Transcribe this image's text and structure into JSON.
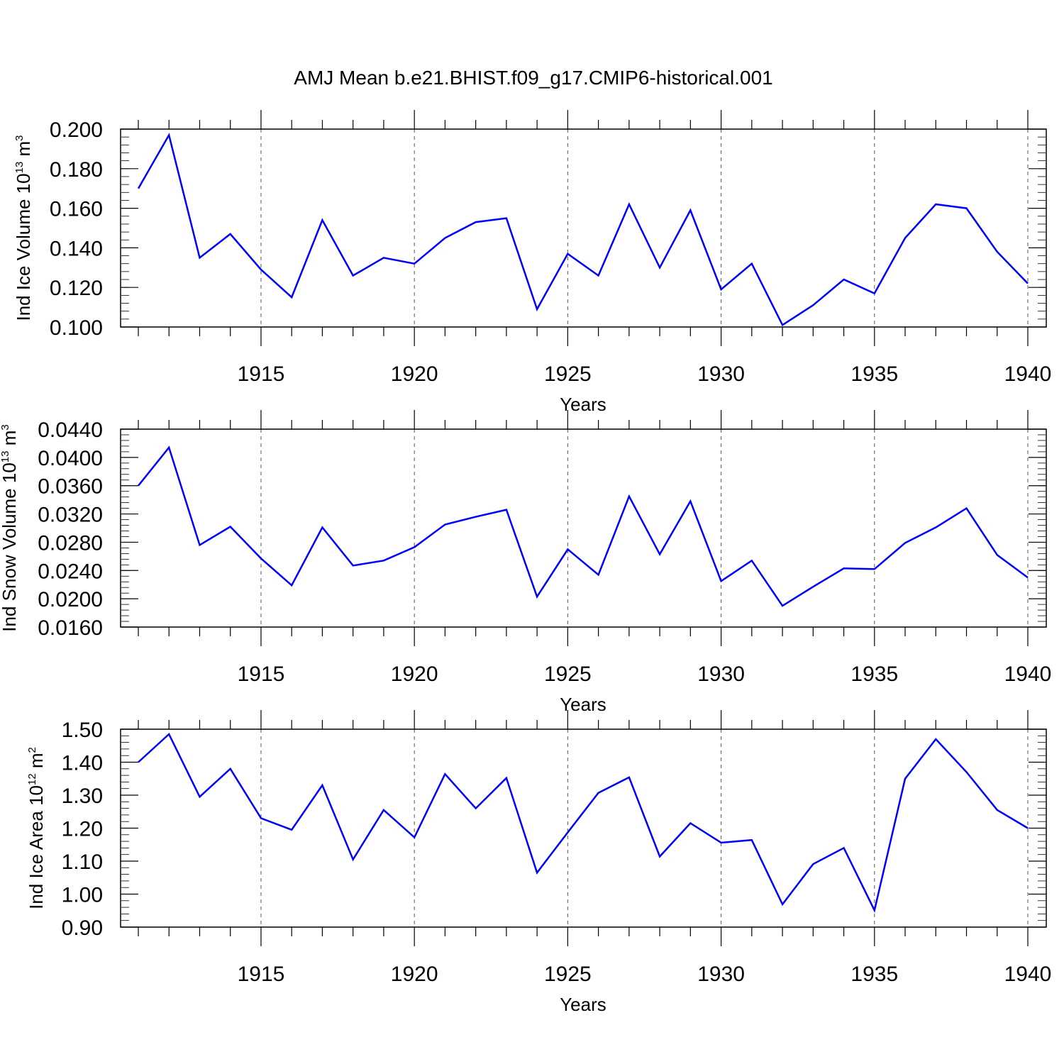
{
  "title": "AMJ Mean b.e21.BHIST.f09_g17.CMIP6-historical.001",
  "chart_data": [
    {
      "type": "line",
      "title": "AMJ Mean b.e21.BHIST.f09_g17.CMIP6-historical.001",
      "ylabel": {
        "prefix": "Ind Ice Volume 10",
        "exp": "13",
        "unit": " m",
        "unit_exp": "3"
      },
      "xlabel": "Years",
      "xlim": [
        1911,
        1940
      ],
      "ylim": [
        0.1,
        0.2
      ],
      "yticks": [
        "0.100",
        "0.120",
        "0.140",
        "0.160",
        "0.180",
        "0.200"
      ],
      "yminor": 0.004,
      "xticks": [
        "1915",
        "1920",
        "1925",
        "1930",
        "1935",
        "1940"
      ],
      "line_color": "#0000ff",
      "grid": "vertical dashed at major x ticks",
      "series": [
        {
          "name": "Ind Ice Volume",
          "x": [
            1911,
            1912,
            1913,
            1914,
            1915,
            1916,
            1917,
            1918,
            1919,
            1920,
            1921,
            1922,
            1923,
            1924,
            1925,
            1926,
            1927,
            1928,
            1929,
            1930,
            1931,
            1932,
            1933,
            1934,
            1935,
            1936,
            1937,
            1938,
            1939,
            1940
          ],
          "values": [
            0.17,
            0.197,
            0.135,
            0.147,
            0.129,
            0.115,
            0.154,
            0.126,
            0.135,
            0.132,
            0.145,
            0.153,
            0.155,
            0.109,
            0.137,
            0.126,
            0.162,
            0.13,
            0.159,
            0.119,
            0.132,
            0.101,
            0.111,
            0.124,
            0.117,
            0.145,
            0.162,
            0.16,
            0.138,
            0.122
          ]
        }
      ]
    },
    {
      "type": "line",
      "ylabel": {
        "prefix": "Ind Snow Volume 10",
        "exp": "13",
        "unit": " m",
        "unit_exp": "3"
      },
      "xlabel": "Years",
      "xlim": [
        1911,
        1940
      ],
      "ylim": [
        0.016,
        0.044
      ],
      "yticks": [
        "0.0160",
        "0.0200",
        "0.0240",
        "0.0280",
        "0.0320",
        "0.0360",
        "0.0400",
        "0.0440"
      ],
      "yminor": 0.0008,
      "xticks": [
        "1915",
        "1920",
        "1925",
        "1930",
        "1935",
        "1940"
      ],
      "line_color": "#0000ff",
      "grid": "vertical dashed at major x ticks",
      "series": [
        {
          "name": "Ind Snow Volume",
          "x": [
            1911,
            1912,
            1913,
            1914,
            1915,
            1916,
            1917,
            1918,
            1919,
            1920,
            1921,
            1922,
            1923,
            1924,
            1925,
            1926,
            1927,
            1928,
            1929,
            1930,
            1931,
            1932,
            1933,
            1934,
            1935,
            1936,
            1937,
            1938,
            1939,
            1940
          ],
          "values": [
            0.036,
            0.0414,
            0.0276,
            0.0302,
            0.0257,
            0.0219,
            0.0301,
            0.0247,
            0.0254,
            0.0273,
            0.0305,
            0.0316,
            0.0326,
            0.0203,
            0.027,
            0.0234,
            0.0345,
            0.0263,
            0.0338,
            0.0225,
            0.0254,
            0.019,
            0.0217,
            0.0243,
            0.0242,
            0.0279,
            0.0301,
            0.0328,
            0.0262,
            0.023
          ]
        }
      ]
    },
    {
      "type": "line",
      "ylabel": {
        "prefix": "Ind Ice Area 10",
        "exp": "12",
        "unit": " m",
        "unit_exp": "2"
      },
      "xlabel": "Years",
      "xlim": [
        1911,
        1940
      ],
      "ylim": [
        0.9,
        1.5
      ],
      "yticks": [
        "0.90",
        "1.00",
        "1.10",
        "1.20",
        "1.30",
        "1.40",
        "1.50"
      ],
      "yminor": 0.02,
      "xticks": [
        "1915",
        "1920",
        "1925",
        "1930",
        "1935",
        "1940"
      ],
      "line_color": "#0000ff",
      "grid": "vertical dashed at major x ticks",
      "series": [
        {
          "name": "Ind Ice Area",
          "x": [
            1911,
            1912,
            1913,
            1914,
            1915,
            1916,
            1917,
            1918,
            1919,
            1920,
            1921,
            1922,
            1923,
            1924,
            1925,
            1926,
            1927,
            1928,
            1929,
            1930,
            1931,
            1932,
            1933,
            1934,
            1935,
            1936,
            1937,
            1938,
            1939,
            1940
          ],
          "values": [
            1.4,
            1.485,
            1.295,
            1.38,
            1.23,
            1.195,
            1.33,
            1.105,
            1.255,
            1.172,
            1.364,
            1.26,
            1.352,
            1.065,
            1.187,
            1.307,
            1.354,
            1.114,
            1.215,
            1.156,
            1.164,
            0.969,
            1.091,
            1.14,
            0.951,
            1.35,
            1.47,
            1.37,
            1.255,
            1.2
          ]
        }
      ]
    }
  ]
}
